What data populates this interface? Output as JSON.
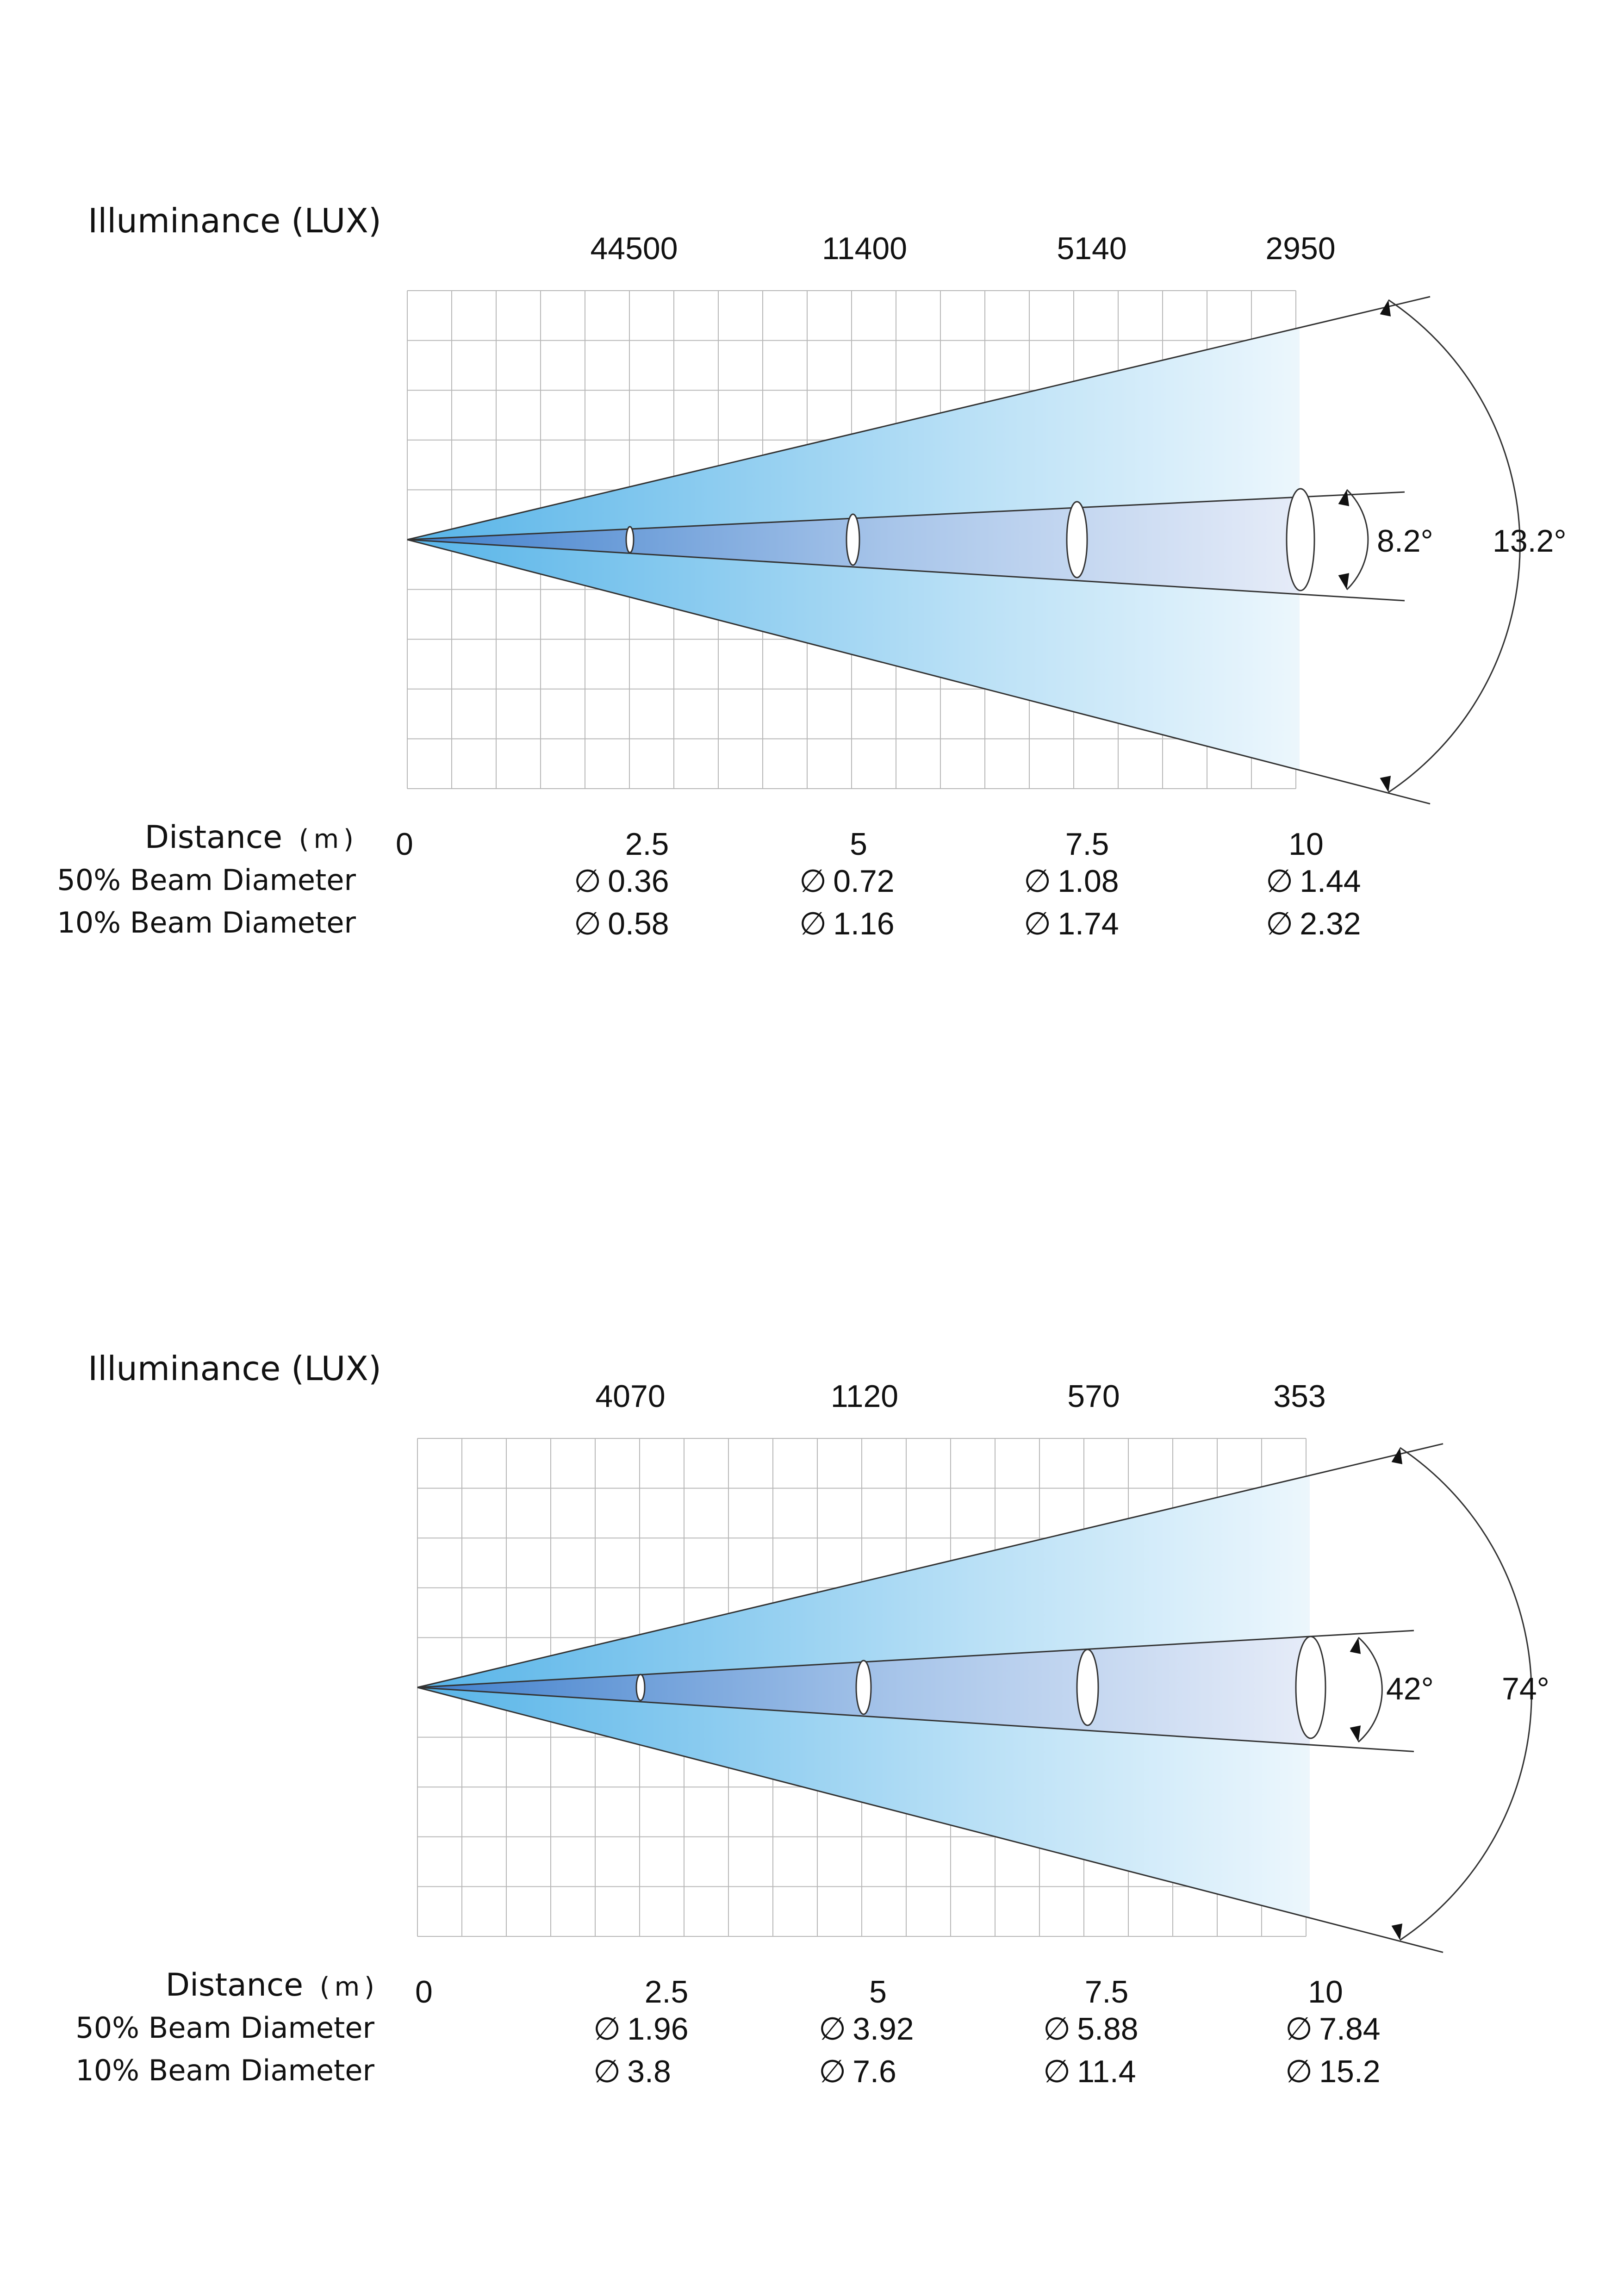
{
  "diagrams": [
    {
      "title": "Illuminance (LUX)",
      "lux": [
        "44500",
        "11400",
        "5140",
        "2950"
      ],
      "angle_inner": "8.2°",
      "angle_outer": "13.2°",
      "distance_label": "Distance",
      "distance_unit": "(m)",
      "zero_label": "0",
      "distances": [
        "2.5",
        "5",
        "7.5",
        "10"
      ],
      "row50_label": "50% Beam Diameter",
      "row10_label": "10% Beam Diameter",
      "diameter_symbol": "∅",
      "beam50": [
        "0.36",
        "0.72",
        "1.08",
        "1.44"
      ],
      "beam10": [
        "0.58",
        "1.16",
        "1.74",
        "2.32"
      ]
    },
    {
      "title": "Illuminance (LUX)",
      "lux": [
        "4070",
        "1120",
        "570",
        "353"
      ],
      "angle_inner": "42°",
      "angle_outer": "74°",
      "distance_label": "Distance",
      "distance_unit": "(m)",
      "zero_label": "0",
      "distances": [
        "2.5",
        "5",
        "7.5",
        "10"
      ],
      "row50_label": "50% Beam Diameter",
      "row10_label": "10% Beam Diameter",
      "diameter_symbol": "∅",
      "beam50": [
        "1.96",
        "3.92",
        "5.88",
        "7.84"
      ],
      "beam10": [
        "3.8",
        "7.6",
        "11.4",
        "15.2"
      ]
    }
  ],
  "colors": {
    "beam_near": "#5ab6e8",
    "beam_far": "#ffffff",
    "inner_beam_near": "#4a8ad0",
    "inner_beam_far": "#eef0f8",
    "grid": "#b8b8b8",
    "lines": "#333333"
  }
}
